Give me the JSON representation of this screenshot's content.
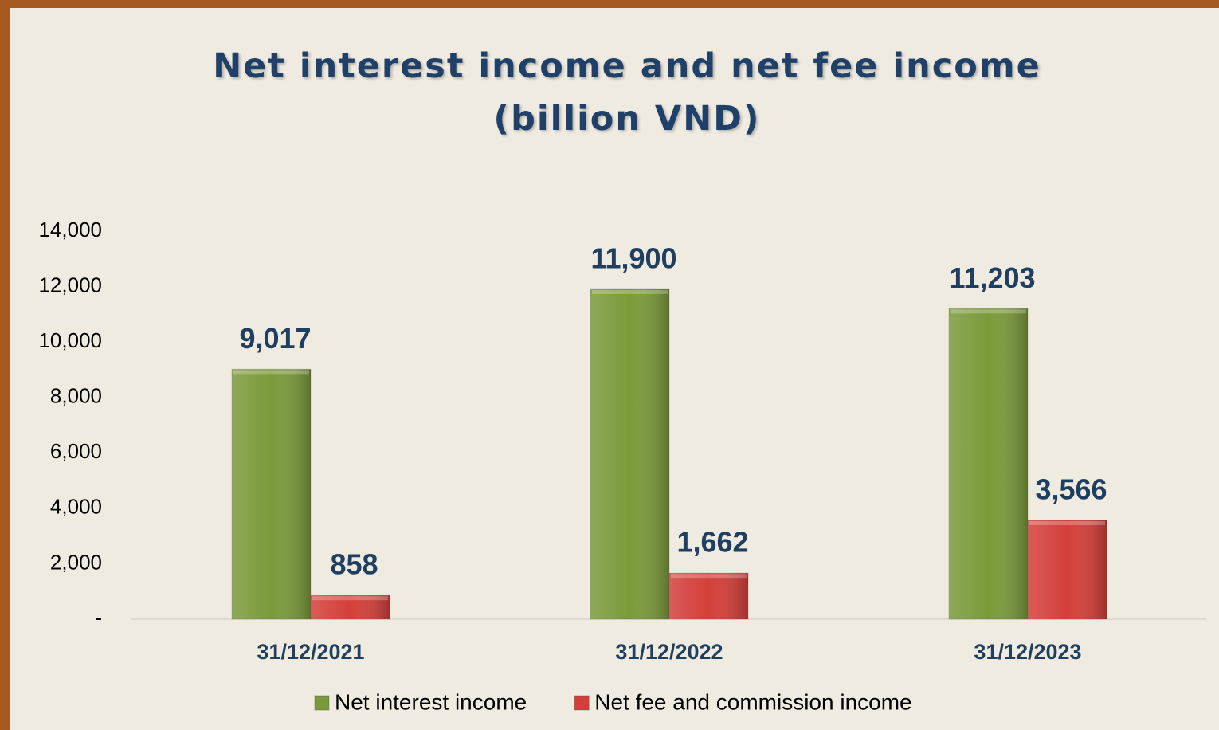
{
  "chart_data": {
    "type": "bar",
    "title": "Net interest income and net fee income (billion VND)",
    "categories": [
      "31/12/2021",
      "31/12/2022",
      "31/12/2023"
    ],
    "series": [
      {
        "name": "Net interest income",
        "color": "#7a9a3a",
        "values": [
          9017,
          11900,
          11203
        ],
        "value_labels": [
          "9,017",
          "11,900",
          "11,203"
        ]
      },
      {
        "name": "Net fee and commission income",
        "color": "#d43f3a",
        "values": [
          858,
          1662,
          3566
        ],
        "value_labels": [
          "858",
          "1,662",
          "3,566"
        ]
      }
    ],
    "ylim": [
      0,
      14000
    ],
    "yticks": [
      {
        "value": 0,
        "label": "-"
      },
      {
        "value": 2000,
        "label": "2,000"
      },
      {
        "value": 4000,
        "label": "4,000"
      },
      {
        "value": 6000,
        "label": "6,000"
      },
      {
        "value": 8000,
        "label": "8,000"
      },
      {
        "value": 10000,
        "label": "10,000"
      },
      {
        "value": 12000,
        "label": "12,000"
      },
      {
        "value": 14000,
        "label": "14,000"
      }
    ],
    "legend": "bottom"
  }
}
